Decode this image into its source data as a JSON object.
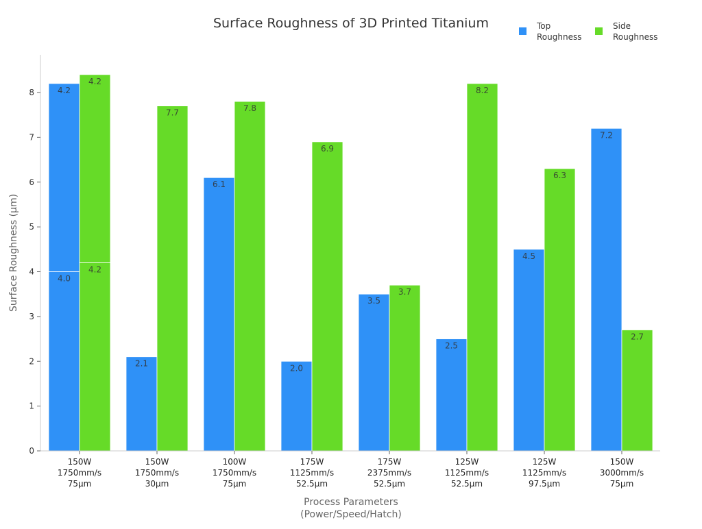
{
  "chart_data": {
    "type": "bar",
    "stacked_segments": true,
    "title": "Surface Roughness of 3D Printed Titanium",
    "xlabel": [
      "Process Parameters",
      "(Power/Speed/Hatch)"
    ],
    "ylabel": "Surface Roughness (μm)",
    "ylim": [
      0,
      8.8
    ],
    "yticks": [
      0,
      1,
      2,
      3,
      4,
      5,
      6,
      7,
      8
    ],
    "grid": false,
    "legend_position": "top-right",
    "categories": [
      [
        "150W",
        "1750mm/s",
        "75μm"
      ],
      [
        "150W",
        "1750mm/s",
        "30μm"
      ],
      [
        "100W",
        "1750mm/s",
        "75μm"
      ],
      [
        "175W",
        "1125mm/s",
        "52.5μm"
      ],
      [
        "175W",
        "2375mm/s",
        "52.5μm"
      ],
      [
        "125W",
        "1125mm/s",
        "52.5μm"
      ],
      [
        "125W",
        "1125mm/s",
        "97.5μm"
      ],
      [
        "150W",
        "3000mm/s",
        "75μm"
      ]
    ],
    "series": [
      {
        "name": [
          "Top",
          "Roughness"
        ],
        "color": "#2f91f7",
        "values": [
          [
            4.0,
            4.2
          ],
          [
            2.1
          ],
          [
            6.1
          ],
          [
            2.0
          ],
          [
            3.5
          ],
          [
            2.5
          ],
          [
            4.5
          ],
          [
            7.2
          ]
        ]
      },
      {
        "name": [
          "Side",
          "Roughness"
        ],
        "color": "#66db28",
        "values": [
          [
            4.2,
            4.2
          ],
          [
            7.7
          ],
          [
            7.8
          ],
          [
            6.9
          ],
          [
            3.7
          ],
          [
            8.2
          ],
          [
            6.3
          ],
          [
            2.7
          ]
        ]
      }
    ]
  }
}
